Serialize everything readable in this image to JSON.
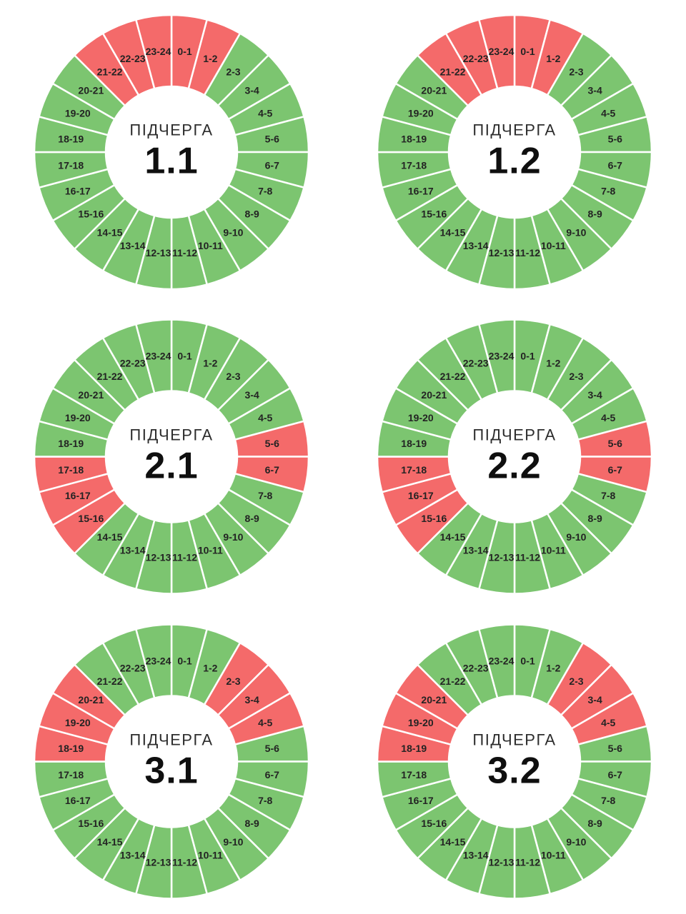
{
  "page": {
    "background": "#ffffff"
  },
  "colors": {
    "green": "#7CC570",
    "red": "#F46A6A",
    "divider": "#FFFFFF",
    "segment_label": "#232323",
    "center_title_color": "#2D2D2D",
    "center_value_color": "#0F0F0F"
  },
  "chart_data": [
    {
      "type": "pie",
      "shape": "donut",
      "center_title": "ПІДЧЕРГА",
      "center_value": "1.1",
      "categories": [
        "0-1",
        "1-2",
        "2-3",
        "3-4",
        "4-5",
        "5-6",
        "6-7",
        "7-8",
        "8-9",
        "9-10",
        "10-11",
        "11-12",
        "12-13",
        "13-14",
        "14-15",
        "15-16",
        "16-17",
        "17-18",
        "18-19",
        "19-20",
        "20-21",
        "21-22",
        "22-23",
        "23-24"
      ],
      "values": [
        1,
        1,
        1,
        1,
        1,
        1,
        1,
        1,
        1,
        1,
        1,
        1,
        1,
        1,
        1,
        1,
        1,
        1,
        1,
        1,
        1,
        1,
        1,
        1
      ],
      "segment_colors": [
        "red",
        "red",
        "green",
        "green",
        "green",
        "green",
        "green",
        "green",
        "green",
        "green",
        "green",
        "green",
        "green",
        "green",
        "green",
        "green",
        "green",
        "green",
        "green",
        "green",
        "green",
        "red",
        "red",
        "red"
      ],
      "red_hours": [
        "21-22",
        "22-23",
        "23-24",
        "0-1",
        "1-2"
      ]
    },
    {
      "type": "pie",
      "shape": "donut",
      "center_title": "ПІДЧЕРГА",
      "center_value": "1.2",
      "categories": [
        "0-1",
        "1-2",
        "2-3",
        "3-4",
        "4-5",
        "5-6",
        "6-7",
        "7-8",
        "8-9",
        "9-10",
        "10-11",
        "11-12",
        "12-13",
        "13-14",
        "14-15",
        "15-16",
        "16-17",
        "17-18",
        "18-19",
        "19-20",
        "20-21",
        "21-22",
        "22-23",
        "23-24"
      ],
      "values": [
        1,
        1,
        1,
        1,
        1,
        1,
        1,
        1,
        1,
        1,
        1,
        1,
        1,
        1,
        1,
        1,
        1,
        1,
        1,
        1,
        1,
        1,
        1,
        1
      ],
      "segment_colors": [
        "red",
        "red",
        "green",
        "green",
        "green",
        "green",
        "green",
        "green",
        "green",
        "green",
        "green",
        "green",
        "green",
        "green",
        "green",
        "green",
        "green",
        "green",
        "green",
        "green",
        "green",
        "red",
        "red",
        "red"
      ],
      "red_hours": [
        "21-22",
        "22-23",
        "23-24",
        "0-1",
        "1-2"
      ]
    },
    {
      "type": "pie",
      "shape": "donut",
      "center_title": "ПІДЧЕРГА",
      "center_value": "2.1",
      "categories": [
        "0-1",
        "1-2",
        "2-3",
        "3-4",
        "4-5",
        "5-6",
        "6-7",
        "7-8",
        "8-9",
        "9-10",
        "10-11",
        "11-12",
        "12-13",
        "13-14",
        "14-15",
        "15-16",
        "16-17",
        "17-18",
        "18-19",
        "19-20",
        "20-21",
        "21-22",
        "22-23",
        "23-24"
      ],
      "values": [
        1,
        1,
        1,
        1,
        1,
        1,
        1,
        1,
        1,
        1,
        1,
        1,
        1,
        1,
        1,
        1,
        1,
        1,
        1,
        1,
        1,
        1,
        1,
        1
      ],
      "segment_colors": [
        "green",
        "green",
        "green",
        "green",
        "green",
        "red",
        "red",
        "green",
        "green",
        "green",
        "green",
        "green",
        "green",
        "green",
        "green",
        "red",
        "red",
        "red",
        "green",
        "green",
        "green",
        "green",
        "green",
        "green"
      ],
      "red_hours": [
        "5-6",
        "6-7",
        "15-16",
        "16-17",
        "17-18"
      ]
    },
    {
      "type": "pie",
      "shape": "donut",
      "center_title": "ПІДЧЕРГА",
      "center_value": "2.2",
      "categories": [
        "0-1",
        "1-2",
        "2-3",
        "3-4",
        "4-5",
        "5-6",
        "6-7",
        "7-8",
        "8-9",
        "9-10",
        "10-11",
        "11-12",
        "12-13",
        "13-14",
        "14-15",
        "15-16",
        "16-17",
        "17-18",
        "18-19",
        "19-20",
        "20-21",
        "21-22",
        "22-23",
        "23-24"
      ],
      "values": [
        1,
        1,
        1,
        1,
        1,
        1,
        1,
        1,
        1,
        1,
        1,
        1,
        1,
        1,
        1,
        1,
        1,
        1,
        1,
        1,
        1,
        1,
        1,
        1
      ],
      "segment_colors": [
        "green",
        "green",
        "green",
        "green",
        "green",
        "red",
        "red",
        "green",
        "green",
        "green",
        "green",
        "green",
        "green",
        "green",
        "green",
        "red",
        "red",
        "red",
        "green",
        "green",
        "green",
        "green",
        "green",
        "green"
      ],
      "red_hours": [
        "5-6",
        "6-7",
        "15-16",
        "16-17",
        "17-18"
      ]
    },
    {
      "type": "pie",
      "shape": "donut",
      "center_title": "ПІДЧЕРГА",
      "center_value": "3.1",
      "categories": [
        "0-1",
        "1-2",
        "2-3",
        "3-4",
        "4-5",
        "5-6",
        "6-7",
        "7-8",
        "8-9",
        "9-10",
        "10-11",
        "11-12",
        "12-13",
        "13-14",
        "14-15",
        "15-16",
        "16-17",
        "17-18",
        "18-19",
        "19-20",
        "20-21",
        "21-22",
        "22-23",
        "23-24"
      ],
      "values": [
        1,
        1,
        1,
        1,
        1,
        1,
        1,
        1,
        1,
        1,
        1,
        1,
        1,
        1,
        1,
        1,
        1,
        1,
        1,
        1,
        1,
        1,
        1,
        1
      ],
      "segment_colors": [
        "green",
        "green",
        "red",
        "red",
        "red",
        "green",
        "green",
        "green",
        "green",
        "green",
        "green",
        "green",
        "green",
        "green",
        "green",
        "green",
        "green",
        "green",
        "red",
        "red",
        "red",
        "green",
        "green",
        "green"
      ],
      "red_hours": [
        "2-3",
        "3-4",
        "4-5",
        "18-19",
        "19-20",
        "20-21"
      ]
    },
    {
      "type": "pie",
      "shape": "donut",
      "center_title": "ПІДЧЕРГА",
      "center_value": "3.2",
      "categories": [
        "0-1",
        "1-2",
        "2-3",
        "3-4",
        "4-5",
        "5-6",
        "6-7",
        "7-8",
        "8-9",
        "9-10",
        "10-11",
        "11-12",
        "12-13",
        "13-14",
        "14-15",
        "15-16",
        "16-17",
        "17-18",
        "18-19",
        "19-20",
        "20-21",
        "21-22",
        "22-23",
        "23-24"
      ],
      "values": [
        1,
        1,
        1,
        1,
        1,
        1,
        1,
        1,
        1,
        1,
        1,
        1,
        1,
        1,
        1,
        1,
        1,
        1,
        1,
        1,
        1,
        1,
        1,
        1
      ],
      "segment_colors": [
        "green",
        "green",
        "red",
        "red",
        "red",
        "green",
        "green",
        "green",
        "green",
        "green",
        "green",
        "green",
        "green",
        "green",
        "green",
        "green",
        "green",
        "green",
        "red",
        "red",
        "red",
        "green",
        "green",
        "green"
      ],
      "red_hours": [
        "2-3",
        "3-4",
        "4-5",
        "18-19",
        "19-20",
        "20-21"
      ]
    }
  ]
}
